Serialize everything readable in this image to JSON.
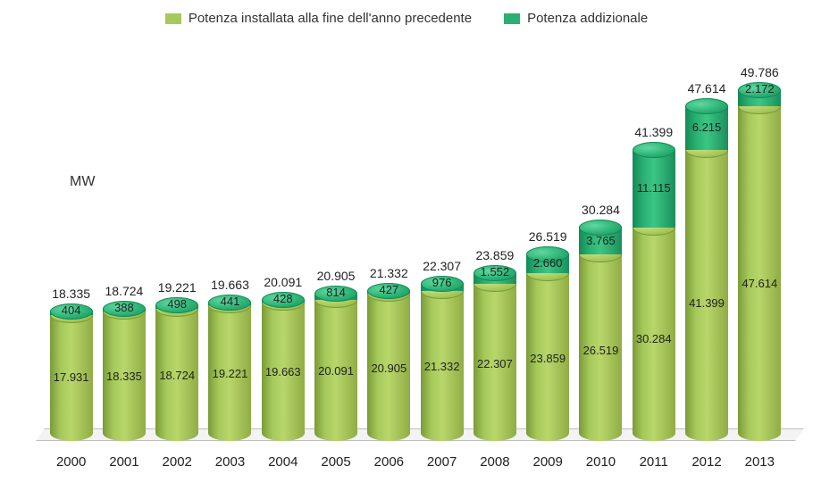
{
  "chart": {
    "type": "stacked-bar-cylinder",
    "unit_label": "MW",
    "background_color": "#ffffff",
    "floor_color": "#f3f3f3",
    "floor_border": "#bfbfbf",
    "legend": [
      {
        "label": "Potenza installata alla fine dell'anno precedente",
        "color": "#a6c95b"
      },
      {
        "label": "Potenza addizionale",
        "color": "#2ab073"
      }
    ],
    "series_colors": {
      "installed": "#a6c95b",
      "additional": "#2ab073"
    },
    "y_max": 52000,
    "label_fontsize": 13,
    "total_fontsize": 14,
    "axis_fontsize": 15,
    "categories": [
      "2000",
      "2001",
      "2002",
      "2003",
      "2004",
      "2005",
      "2006",
      "2007",
      "2008",
      "2009",
      "2010",
      "2011",
      "2012",
      "2013"
    ],
    "data": [
      {
        "year": "2000",
        "installed": 17931,
        "additional": 404,
        "total": 18335,
        "installed_label": "17.931",
        "additional_label": "404",
        "total_label": "18.335"
      },
      {
        "year": "2001",
        "installed": 18335,
        "additional": 388,
        "total": 18724,
        "installed_label": "18.335",
        "additional_label": "388",
        "total_label": "18.724"
      },
      {
        "year": "2002",
        "installed": 18724,
        "additional": 498,
        "total": 19221,
        "installed_label": "18.724",
        "additional_label": "498",
        "total_label": "19.221"
      },
      {
        "year": "2003",
        "installed": 19221,
        "additional": 441,
        "total": 19663,
        "installed_label": "19.221",
        "additional_label": "441",
        "total_label": "19.663"
      },
      {
        "year": "2004",
        "installed": 19663,
        "additional": 428,
        "total": 20091,
        "installed_label": "19.663",
        "additional_label": "428",
        "total_label": "20.091"
      },
      {
        "year": "2005",
        "installed": 20091,
        "additional": 814,
        "total": 20905,
        "installed_label": "20.091",
        "additional_label": "814",
        "total_label": "20.905"
      },
      {
        "year": "2006",
        "installed": 20905,
        "additional": 427,
        "total": 21332,
        "installed_label": "20.905",
        "additional_label": "427",
        "total_label": "21.332"
      },
      {
        "year": "2007",
        "installed": 21332,
        "additional": 976,
        "total": 22307,
        "installed_label": "21.332",
        "additional_label": "976",
        "total_label": "22.307"
      },
      {
        "year": "2008",
        "installed": 22307,
        "additional": 1552,
        "total": 23859,
        "installed_label": "22.307",
        "additional_label": "1.552",
        "total_label": "23.859"
      },
      {
        "year": "2009",
        "installed": 23859,
        "additional": 2660,
        "total": 26519,
        "installed_label": "23.859",
        "additional_label": "2.660",
        "total_label": "26.519"
      },
      {
        "year": "2010",
        "installed": 26519,
        "additional": 3765,
        "total": 30284,
        "installed_label": "26.519",
        "additional_label": "3.765",
        "total_label": "30.284"
      },
      {
        "year": "2011",
        "installed": 30284,
        "additional": 11115,
        "total": 41399,
        "installed_label": "30.284",
        "additional_label": "11.115",
        "total_label": "41.399"
      },
      {
        "year": "2012",
        "installed": 41399,
        "additional": 6215,
        "total": 47614,
        "installed_label": "41.399",
        "additional_label": "6.215",
        "total_label": "47.614"
      },
      {
        "year": "2013",
        "installed": 47614,
        "additional": 2172,
        "total": 49786,
        "installed_label": "47.614",
        "additional_label": "2.172",
        "total_label": "49.786"
      }
    ]
  }
}
